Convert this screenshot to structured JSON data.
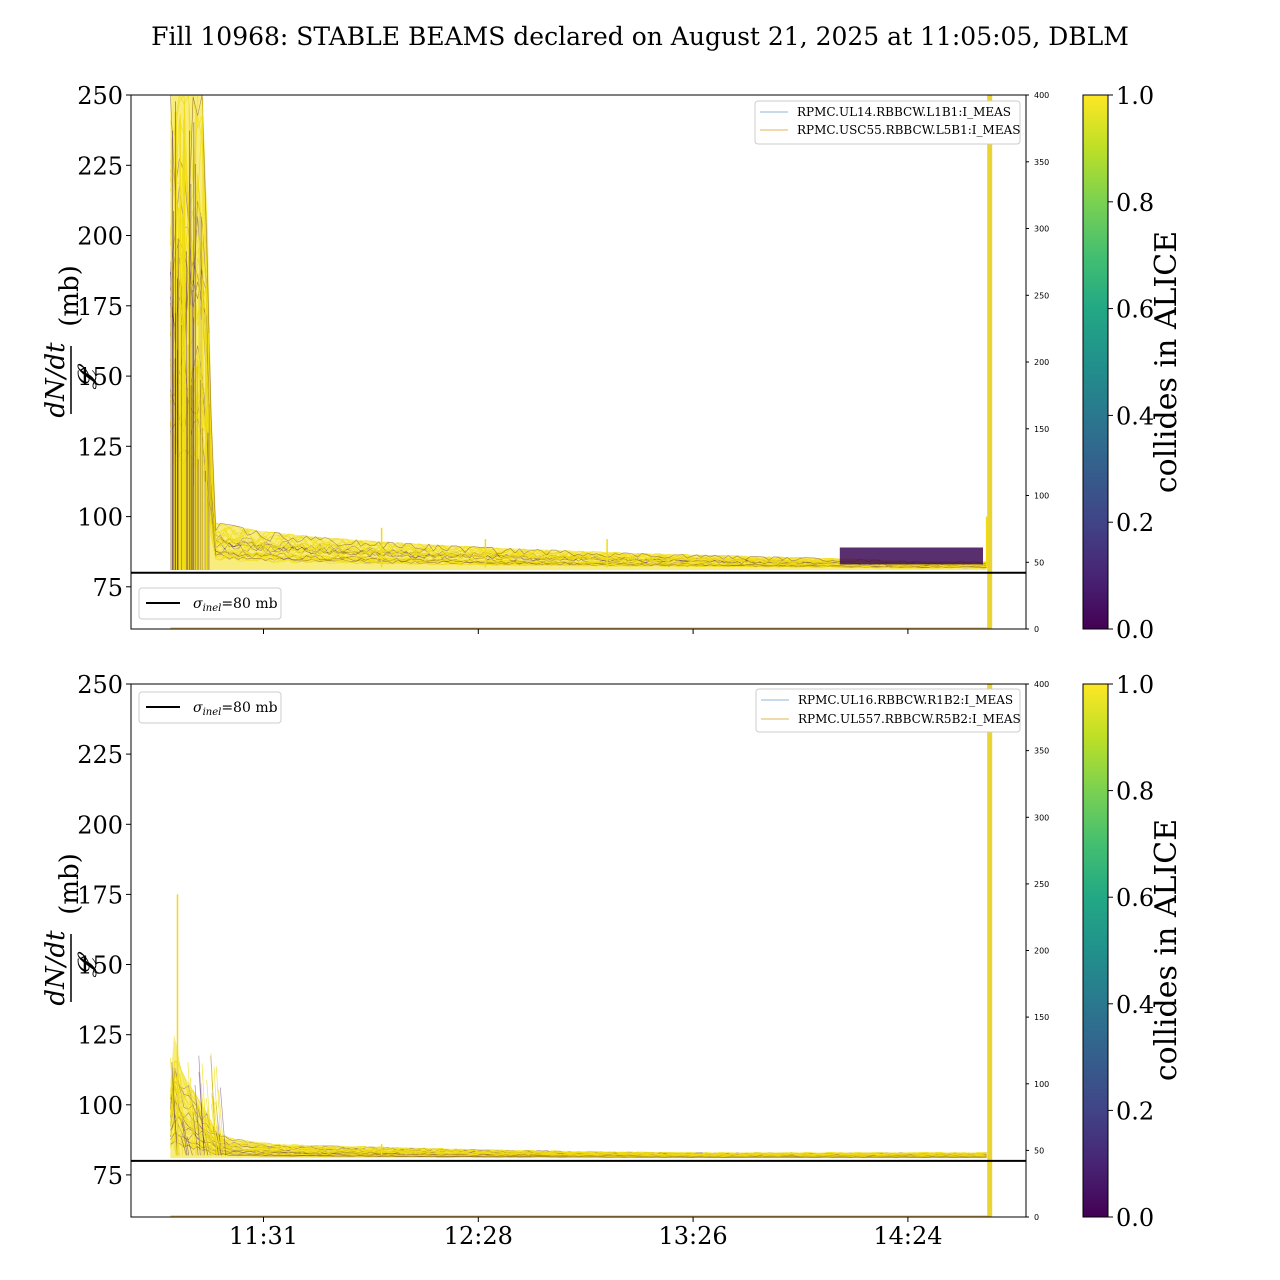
{
  "title": "Fill 10968: STABLE BEAMS declared on August 21, 2025 at 11:05:05, DBLM",
  "colors": {
    "viridis_low": "#440154",
    "viridis_high": "#fde725",
    "trace_yellow": "#f0dc10",
    "trace_purple": "#3d0a56",
    "legend_line_1": "#8fb4d8",
    "legend_line_2": "#e2b45a",
    "reference_line": "#000000"
  },
  "chart_data": [
    {
      "type": "line",
      "panel": "top",
      "ylabel_numerator": "dN/dt",
      "ylabel_denominator": "𝓛",
      "ylabel_unit": "(mb)",
      "ylim": [
        60,
        250
      ],
      "yticks": [
        "75",
        "100",
        "125",
        "150",
        "175",
        "200",
        "225",
        "250"
      ],
      "ytick_values": [
        75,
        100,
        125,
        150,
        175,
        200,
        225,
        250
      ],
      "xlim_minutes": [
        0,
        250
      ],
      "xtick_minutes": [
        37,
        97,
        157,
        217
      ],
      "xticks": [
        "",
        "",
        "",
        ""
      ],
      "secondary_ylim": [
        0,
        400
      ],
      "secondary_yticks": [
        "0",
        "50",
        "100",
        "150",
        "200",
        "250",
        "300",
        "350",
        "400"
      ],
      "legend_right": [
        "RPMC.UL14.RBBCW.L1B1:I_MEAS",
        "RPMC.USC55.RBBCW.L5B1:I_MEAS"
      ],
      "legend_left": {
        "sym": "σ",
        "sub": "inel",
        "rest": "=80 mb"
      },
      "reference_value": 80,
      "start_minute": 11,
      "end_minute": 239,
      "envelope_minutes": [
        11,
        13,
        15,
        17,
        18.5,
        20,
        21.5,
        23,
        28,
        35,
        50,
        70,
        100,
        140,
        170,
        200,
        220,
        239
      ],
      "envelope_yellow_max": [
        250,
        250,
        250,
        250,
        250,
        250,
        200,
        98,
        97,
        95,
        93,
        91,
        89,
        87,
        86,
        85,
        84,
        84
      ],
      "envelope_yellow_min": [
        81,
        81,
        81,
        81,
        81,
        81,
        81,
        81,
        81,
        81,
        81,
        81,
        81,
        81,
        81,
        81,
        81,
        81
      ],
      "spikes": [
        [
          70,
          96
        ],
        [
          99,
          92
        ],
        [
          133,
          92
        ],
        [
          239,
          100
        ]
      ],
      "purple_band": {
        "from_minute": 198,
        "to_minute": 238,
        "low": 83,
        "high": 89
      },
      "cut_minute": 240
    },
    {
      "type": "line",
      "panel": "bottom",
      "ylabel_numerator": "dN/dt",
      "ylabel_denominator": "𝓛",
      "ylabel_unit": "(mb)",
      "ylim": [
        60,
        250
      ],
      "yticks": [
        "75",
        "100",
        "125",
        "150",
        "175",
        "200",
        "225",
        "250"
      ],
      "ytick_values": [
        75,
        100,
        125,
        150,
        175,
        200,
        225,
        250
      ],
      "xlim_minutes": [
        0,
        250
      ],
      "xtick_minutes": [
        37,
        97,
        157,
        217
      ],
      "xticks": [
        "11:31",
        "12:28",
        "13:26",
        "14:24"
      ],
      "secondary_ylim": [
        0,
        400
      ],
      "secondary_yticks": [
        "0",
        "50",
        "100",
        "150",
        "200",
        "250",
        "300",
        "350",
        "400"
      ],
      "legend_right": [
        "RPMC.UL16.RBBCW.R1B2:I_MEAS",
        "RPMC.UL557.RBBCW.R5B2:I_MEAS"
      ],
      "legend_left": {
        "sym": "σ",
        "sub": "inel",
        "rest": "=80 mb"
      },
      "reference_value": 80,
      "start_minute": 11,
      "end_minute": 239,
      "envelope_minutes": [
        11,
        12,
        13,
        14,
        16,
        18,
        21,
        24,
        28,
        40,
        70,
        100,
        150,
        200,
        239
      ],
      "envelope_yellow_max": [
        108,
        125,
        120,
        112,
        108,
        104,
        98,
        90,
        88,
        86,
        85,
        84,
        83,
        83,
        83
      ],
      "envelope_yellow_min": [
        81,
        81,
        81,
        81,
        81,
        81,
        81,
        81,
        81,
        81,
        81,
        81,
        81,
        81,
        81
      ],
      "spikes": [
        [
          13,
          175
        ],
        [
          70,
          86
        ],
        [
          160,
          83
        ]
      ],
      "cut_minute": 240
    }
  ],
  "colorbar": {
    "label": "collides in ALICE",
    "ticks": [
      "0.0",
      "0.2",
      "0.4",
      "0.6",
      "0.8",
      "1.0"
    ],
    "tick_values": [
      0,
      0.2,
      0.4,
      0.6,
      0.8,
      1.0
    ]
  }
}
